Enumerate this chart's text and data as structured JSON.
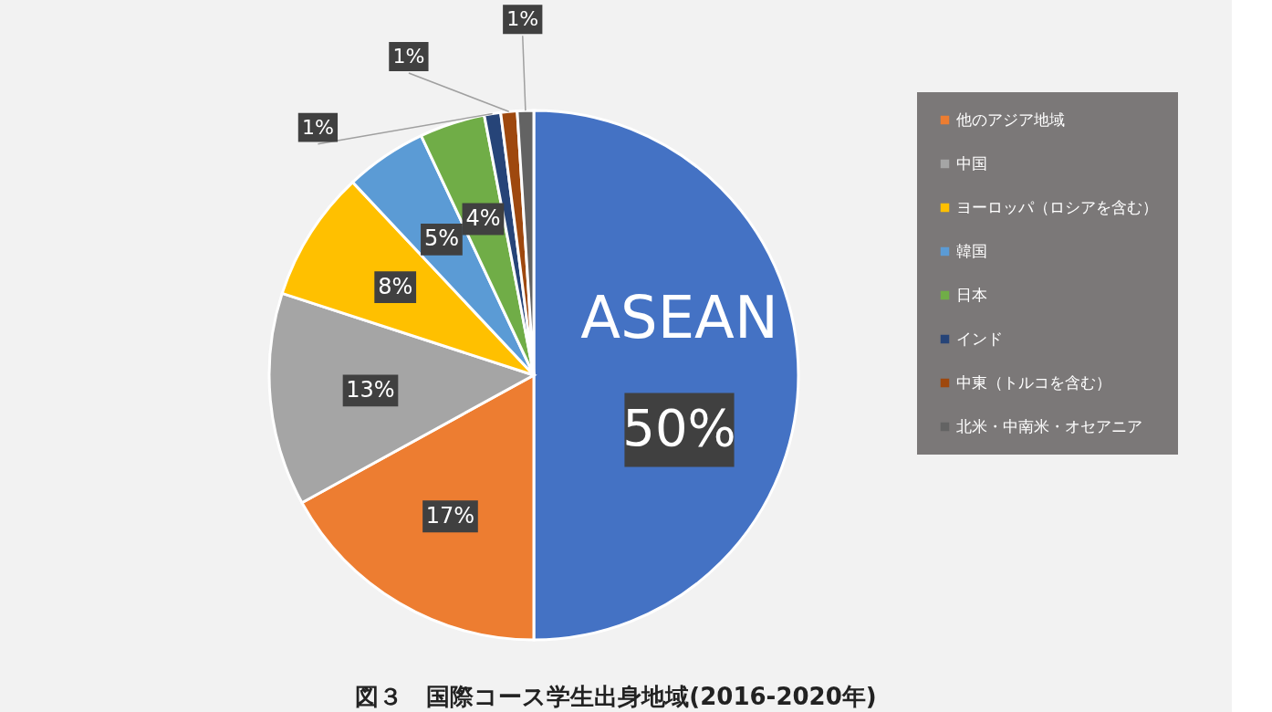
{
  "chart_data": {
    "type": "pie",
    "title": "図３　国際コース学生出身地域(2016-2020年)",
    "categories": [
      "ASEAN",
      "他のアジア地域",
      "中国",
      "ヨーロッパ（ロシアを含む）",
      "韓国",
      "日本",
      "インド",
      "中東（トルコを含む）",
      "北米・中南米・オセアニア"
    ],
    "values": [
      50,
      17,
      13,
      8,
      5,
      4,
      1,
      1,
      1
    ],
    "value_labels": [
      "50%",
      "17%",
      "13%",
      "8%",
      "5%",
      "4%",
      "1%",
      "1%",
      "1%"
    ],
    "colors": [
      "#4472c4",
      "#ed7d31",
      "#a5a5a5",
      "#ffc000",
      "#5b9bd5",
      "#70ad47",
      "#264478",
      "#9e480e",
      "#636363"
    ],
    "legend": "right"
  }
}
